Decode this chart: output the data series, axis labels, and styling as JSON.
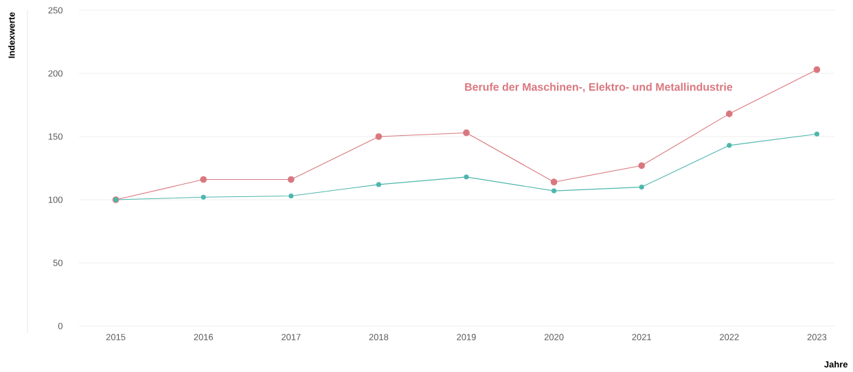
{
  "chart_data": {
    "type": "line",
    "xlabel": "Jahre",
    "ylabel": "Indexwerte",
    "categories": [
      "2015",
      "2016",
      "2017",
      "2018",
      "2019",
      "2020",
      "2021",
      "2022",
      "2023"
    ],
    "series": [
      {
        "name": "Berufe der Maschinen-, Elektro- und Metallindustrie",
        "color": "#d9777f",
        "values": [
          100,
          116,
          116,
          150,
          153,
          114,
          127,
          168,
          203
        ]
      },
      {
        "color": "#4db6ac",
        "values": [
          100,
          102,
          103,
          112,
          118,
          107,
          110,
          143,
          152
        ]
      }
    ],
    "ylim": [
      0,
      250
    ],
    "yticks": [
      0,
      50,
      100,
      150,
      200,
      250
    ],
    "grid": "y",
    "marker": "circle",
    "line_style": "solid"
  }
}
